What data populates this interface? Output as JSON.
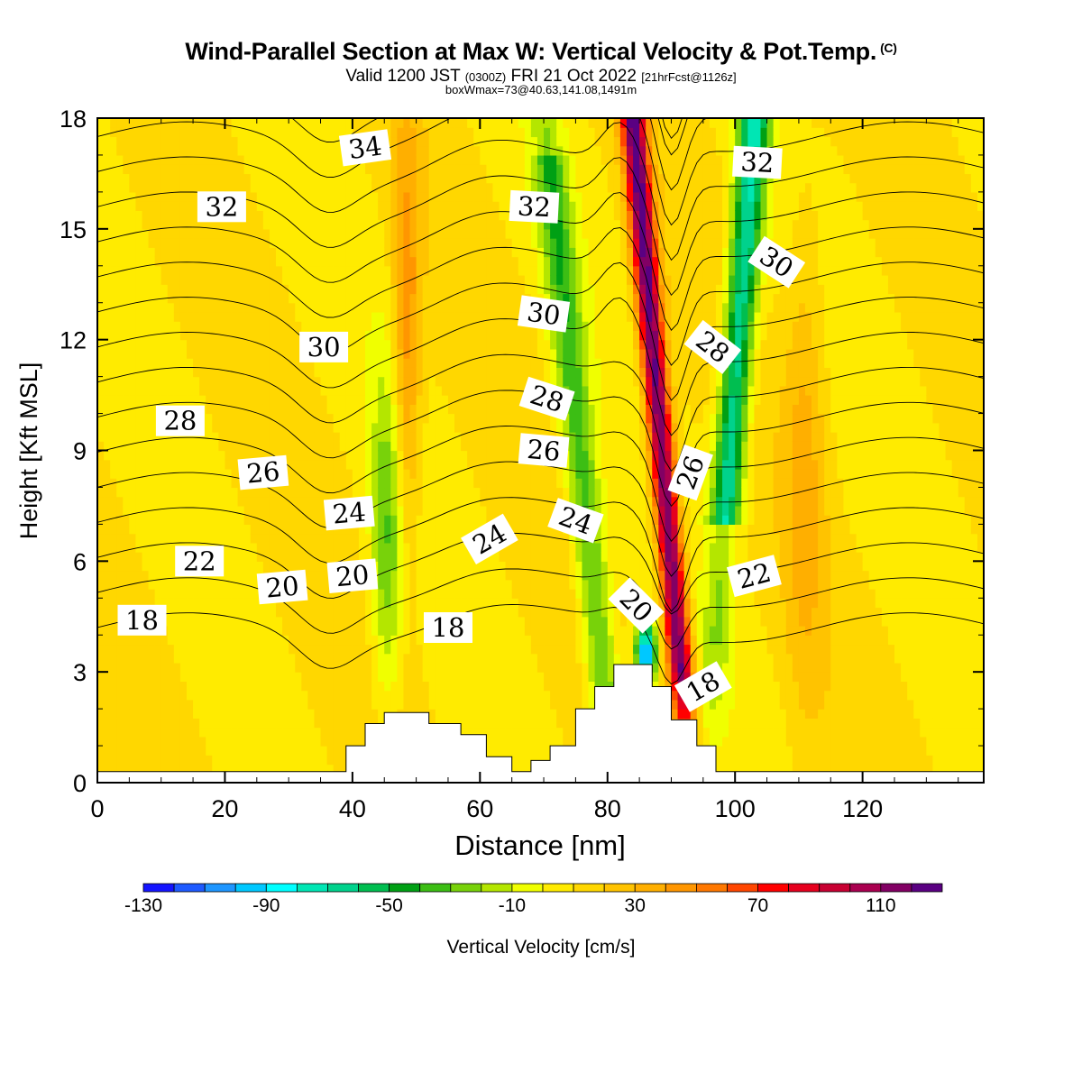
{
  "header": {
    "title": "Wind-Parallel Section at Max W: Vertical Velocity & Pot.Temp.",
    "copyright": "(C)",
    "valid_prefix": "Valid 1200 JST",
    "valid_utc": "(0300Z)",
    "valid_date": "FRI 21 Oct 2022",
    "forecast": "[21hrFcst@1126z]",
    "box_info": "boxWmax=73@40.63,141.08,1491m"
  },
  "chart_data": {
    "type": "heatmap",
    "xlabel": "Distance [nm]",
    "ylabel": "Height [Kft MSL]",
    "xlim": [
      0,
      139
    ],
    "ylim": [
      0,
      18
    ],
    "xticks": [
      "0",
      "20",
      "40",
      "60",
      "80",
      "100",
      "120"
    ],
    "yticks": [
      "0",
      "3",
      "6",
      "9",
      "12",
      "15",
      "18"
    ],
    "fill_variable": "Vertical Velocity [cm/s]",
    "colorbar": {
      "label": "Vertical Velocity [cm/s]",
      "tick_labels": [
        "-130",
        "-90",
        "-50",
        "-10",
        "30",
        "70",
        "110"
      ],
      "tick_values": [
        -130,
        -90,
        -50,
        -10,
        30,
        70,
        110
      ],
      "levels": [
        -130,
        -120,
        -110,
        -100,
        -90,
        -80,
        -70,
        -60,
        -50,
        -40,
        -30,
        -20,
        -10,
        0,
        10,
        20,
        30,
        40,
        50,
        60,
        70,
        80,
        90,
        100,
        110,
        120
      ],
      "colors": [
        "#1414ff",
        "#1e5aff",
        "#1e96ff",
        "#00c8ff",
        "#00ffff",
        "#00e6b4",
        "#00d28c",
        "#00be50",
        "#00a014",
        "#3cbe14",
        "#78d20a",
        "#b4e600",
        "#f0ff00",
        "#ffeb00",
        "#ffd700",
        "#ffc300",
        "#ffaf00",
        "#ff9600",
        "#ff7800",
        "#ff4600",
        "#ff0000",
        "#e6001e",
        "#c80032",
        "#aa0050",
        "#820064",
        "#5a0082"
      ]
    },
    "vertical_velocity_features": [
      {
        "feature": "updraft core",
        "x": [
          84,
          93
        ],
        "height": [
          2.5,
          18
        ],
        "peak": 115
      },
      {
        "feature": "downdraft core",
        "x": [
          84,
          88
        ],
        "height": [
          2.6,
          4.8
        ],
        "peak": -120
      },
      {
        "feature": "downdraft band",
        "x": [
          94,
          104
        ],
        "height": [
          8,
          18
        ],
        "peak": -80
      },
      {
        "feature": "downdraft band",
        "x": [
          42,
          50
        ],
        "height": [
          1.5,
          12
        ],
        "peak": -40
      },
      {
        "feature": "downdraft band",
        "x": [
          66,
          84
        ],
        "height": [
          2,
          18
        ],
        "peak": -40
      },
      {
        "feature": "updraft band",
        "x": [
          46,
          52
        ],
        "height": [
          2,
          18
        ],
        "peak": 40
      },
      {
        "feature": "updraft band",
        "x": [
          107,
          115
        ],
        "height": [
          0.5,
          17
        ],
        "peak": 25
      }
    ],
    "contour_variable": "Potential Temperature",
    "contour_levels": [
      "18",
      "20",
      "22",
      "24",
      "26",
      "28",
      "30",
      "32",
      "34"
    ],
    "contour_label_positions": [
      {
        "label": "34",
        "x": 42,
        "y": 17.2,
        "angle": -8
      },
      {
        "label": "32",
        "x": 19.5,
        "y": 15.6,
        "angle": 0
      },
      {
        "label": "32",
        "x": 68.5,
        "y": 15.6,
        "angle": 3
      },
      {
        "label": "32",
        "x": 103.5,
        "y": 16.8,
        "angle": 3
      },
      {
        "label": "30",
        "x": 106.5,
        "y": 14.1,
        "angle": 33
      },
      {
        "label": "30",
        "x": 70,
        "y": 12.7,
        "angle": 8
      },
      {
        "label": "30",
        "x": 35.5,
        "y": 11.8,
        "angle": 0
      },
      {
        "label": "28",
        "x": 96.5,
        "y": 11.8,
        "angle": 38
      },
      {
        "label": "28",
        "x": 70.5,
        "y": 10.4,
        "angle": 18
      },
      {
        "label": "28",
        "x": 13,
        "y": 9.8,
        "angle": 0
      },
      {
        "label": "26",
        "x": 70,
        "y": 9.0,
        "angle": 5
      },
      {
        "label": "26",
        "x": 93,
        "y": 8.4,
        "angle": -70
      },
      {
        "label": "26",
        "x": 26,
        "y": 8.4,
        "angle": -5
      },
      {
        "label": "24",
        "x": 39.5,
        "y": 7.3,
        "angle": -5
      },
      {
        "label": "24",
        "x": 75,
        "y": 7.1,
        "angle": 20
      },
      {
        "label": "24",
        "x": 61.5,
        "y": 6.6,
        "angle": -30
      },
      {
        "label": "22",
        "x": 16,
        "y": 6.0,
        "angle": 0
      },
      {
        "label": "22",
        "x": 103,
        "y": 5.6,
        "angle": -15
      },
      {
        "label": "20",
        "x": 40,
        "y": 5.6,
        "angle": -5
      },
      {
        "label": "20",
        "x": 29,
        "y": 5.3,
        "angle": -5
      },
      {
        "label": "20",
        "x": 84.5,
        "y": 4.8,
        "angle": 45
      },
      {
        "label": "18",
        "x": 7,
        "y": 4.4,
        "angle": 0
      },
      {
        "label": "18",
        "x": 55,
        "y": 4.2,
        "angle": 0
      },
      {
        "label": "18",
        "x": 95,
        "y": 2.6,
        "angle": -30
      }
    ],
    "terrain": {
      "x": [
        0,
        39,
        39,
        42,
        42,
        45,
        45,
        52,
        52,
        57,
        57,
        61,
        61,
        65,
        65,
        68,
        68,
        71,
        71,
        75,
        75,
        78,
        78,
        81,
        81,
        87,
        87,
        90,
        90,
        94,
        94,
        97,
        97,
        139
      ],
      "height": [
        0.3,
        0.3,
        1.0,
        1.0,
        1.6,
        1.6,
        1.9,
        1.9,
        1.6,
        1.6,
        1.3,
        1.3,
        0.7,
        0.7,
        0.3,
        0.3,
        0.6,
        0.6,
        1.0,
        1.0,
        2.0,
        2.0,
        2.6,
        2.6,
        3.2,
        3.2,
        2.6,
        2.6,
        1.7,
        1.7,
        1.0,
        1.0,
        0.3,
        0.3
      ]
    }
  }
}
